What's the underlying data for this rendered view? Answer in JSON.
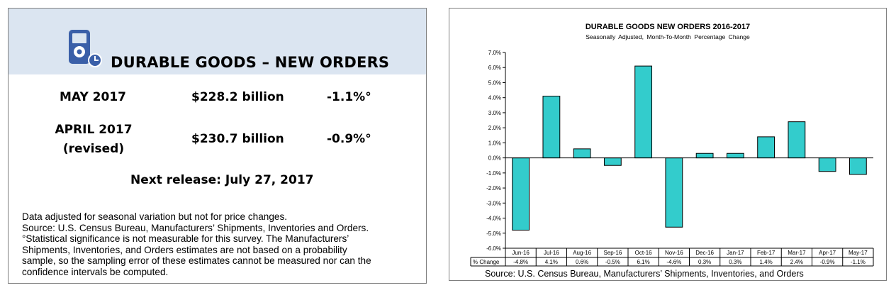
{
  "summary": {
    "title": "DURABLE GOODS – NEW ORDERS",
    "icon": "device-clock-icon",
    "rows": [
      {
        "period": "MAY 2017",
        "value": "$228.2 billion",
        "change": "-1.1%°"
      },
      {
        "period_line1": "APRIL 2017",
        "period_line2": "(revised)",
        "value": "$230.7 billion",
        "change": "-0.9%°"
      }
    ],
    "next_release": "Next release: July 27, 2017",
    "notes": [
      "Data adjusted for seasonal variation but not for price changes.",
      "Source: U.S. Census Bureau, Manufacturers’ Shipments, Inventories and Orders.",
      "°Statistical significance is not measurable for this survey.  The Manufacturers’",
      "Shipments, Inventories, and Orders estimates are not based on a probability",
      "sample, so the sampling error of these estimates cannot be measured nor can the",
      "confidence intervals be computed."
    ],
    "header_color": "#dbe5f1"
  },
  "chart_data": {
    "type": "bar",
    "title": "DURABLE GOODS NEW ORDERS 2016-2017",
    "subtitle": "Seasonally Adjusted, Month-To-Month Percentage Change",
    "categories": [
      "Jun-16",
      "Jul-16",
      "Aug-16",
      "Sep-16",
      "Oct-16",
      "Nov-16",
      "Dec-16",
      "Jan-17",
      "Feb-17",
      "Mar-17",
      "Apr-17",
      "May-17"
    ],
    "series": [
      {
        "name": "% Change",
        "values": [
          -4.8,
          4.1,
          0.6,
          -0.5,
          6.1,
          -4.6,
          0.3,
          0.3,
          1.4,
          2.4,
          -0.9,
          -1.1
        ]
      }
    ],
    "table_labels": [
      "-4.8%",
      "4.1%",
      "0.6%",
      "-0.5%",
      "6.1%",
      "-4.6%",
      "0.3%",
      "0.3%",
      "1.4%",
      "2.4%",
      "-0.9%",
      "-1.1%"
    ],
    "table_row_label": "% Change",
    "ylim": [
      -6.0,
      7.0
    ],
    "ytick_step": 1.0,
    "ytick_labels": [
      "7.0%",
      "6.0%",
      "5.0%",
      "4.0%",
      "3.0%",
      "2.0%",
      "1.0%",
      "0.0%",
      "-1.0%",
      "-2.0%",
      "-3.0%",
      "-4.0%",
      "-5.0%",
      "-6.0%"
    ],
    "grid": false,
    "bar_color": "#33cccc",
    "source": "Source: U.S. Census Bureau, Manufacturers’ Shipments, Inventories, and Orders"
  }
}
